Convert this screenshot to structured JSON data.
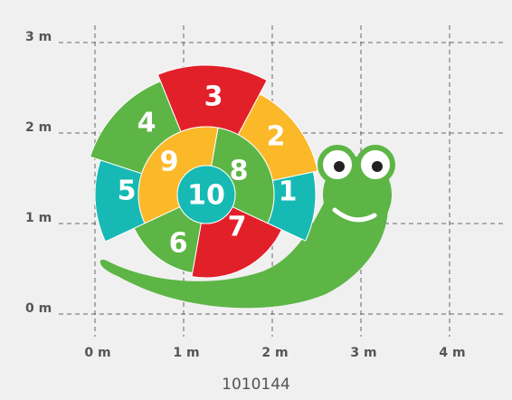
{
  "grid": {
    "x_labels": [
      "0 m",
      "1 m",
      "2 m",
      "3 m",
      "4 m"
    ],
    "y_labels": [
      "3 m",
      "2 m",
      "1 m",
      "0 m"
    ]
  },
  "shell": {
    "segments": [
      "1",
      "2",
      "3",
      "4",
      "5",
      "6",
      "7",
      "8",
      "9",
      "10"
    ]
  },
  "caption": "1010144"
}
